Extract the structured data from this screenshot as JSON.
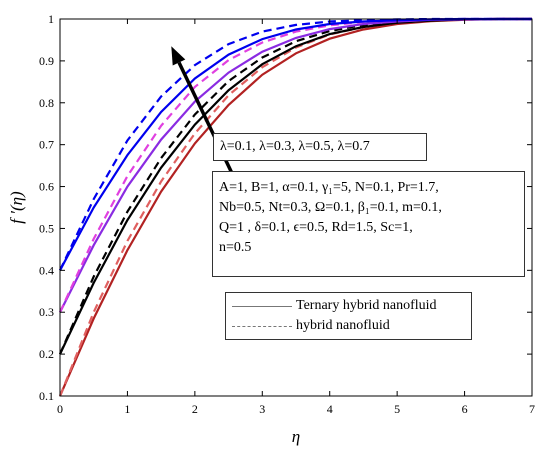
{
  "chart_data": {
    "type": "line",
    "title": "",
    "xlabel": "η",
    "ylabel": "f ′(η)",
    "xlim": [
      0,
      7
    ],
    "ylim": [
      0.1,
      1
    ],
    "xticks": [
      "0",
      "1",
      "2",
      "3",
      "4",
      "5",
      "6",
      "7"
    ],
    "yticks": [
      "0.1",
      "0.2",
      "0.3",
      "0.4",
      "0.5",
      "0.6",
      "0.7",
      "0.8",
      "0.9",
      "1"
    ],
    "grid": false,
    "series": [
      {
        "lambda": 0.1,
        "color": "#b22222",
        "style": "solid",
        "x": [
          0,
          0.5,
          1,
          1.5,
          2,
          2.5,
          3,
          3.5,
          4,
          4.5,
          5,
          5.5,
          6,
          6.5,
          7
        ],
        "y": [
          0.1,
          0.285,
          0.448,
          0.588,
          0.703,
          0.795,
          0.867,
          0.918,
          0.953,
          0.975,
          0.988,
          0.995,
          0.998,
          1.0,
          1.0
        ]
      },
      {
        "lambda": 0.1,
        "color": "#e06060",
        "style": "dashed",
        "x": [
          0,
          0.5,
          1,
          1.5,
          2,
          2.5,
          3,
          3.5,
          4,
          4.5,
          5,
          5.5,
          6,
          6.5,
          7
        ],
        "y": [
          0.1,
          0.3,
          0.47,
          0.612,
          0.727,
          0.818,
          0.885,
          0.932,
          0.963,
          0.981,
          0.991,
          0.996,
          0.999,
          1.0,
          1.0
        ]
      },
      {
        "lambda": 0.3,
        "color": "#000000",
        "style": "solid",
        "x": [
          0,
          0.5,
          1,
          1.5,
          2,
          2.5,
          3,
          3.5,
          4,
          4.5,
          5,
          5.5,
          6,
          6.5,
          7
        ],
        "y": [
          0.2,
          0.37,
          0.52,
          0.645,
          0.748,
          0.83,
          0.892,
          0.935,
          0.964,
          0.981,
          0.991,
          0.996,
          0.999,
          1.0,
          1.0
        ]
      },
      {
        "lambda": 0.3,
        "color": "#000000",
        "style": "dashed",
        "x": [
          0,
          0.5,
          1,
          1.5,
          2,
          2.5,
          3,
          3.5,
          4,
          4.5,
          5,
          5.5,
          6,
          6.5,
          7
        ],
        "y": [
          0.2,
          0.385,
          0.54,
          0.668,
          0.772,
          0.852,
          0.908,
          0.947,
          0.971,
          0.986,
          0.994,
          0.997,
          0.999,
          1.0,
          1.0
        ]
      },
      {
        "lambda": 0.5,
        "color": "#8a2be2",
        "style": "solid",
        "x": [
          0,
          0.5,
          1,
          1.5,
          2,
          2.5,
          3,
          3.5,
          4,
          4.5,
          5,
          5.5,
          6,
          6.5,
          7
        ],
        "y": [
          0.3,
          0.46,
          0.6,
          0.712,
          0.803,
          0.872,
          0.922,
          0.955,
          0.976,
          0.988,
          0.994,
          0.998,
          0.999,
          1.0,
          1.0
        ]
      },
      {
        "lambda": 0.5,
        "color": "#e040e0",
        "style": "dashed",
        "x": [
          0,
          0.5,
          1,
          1.5,
          2,
          2.5,
          3,
          3.5,
          4,
          4.5,
          5,
          5.5,
          6,
          6.5,
          7
        ],
        "y": [
          0.3,
          0.475,
          0.625,
          0.745,
          0.838,
          0.902,
          0.944,
          0.97,
          0.985,
          0.993,
          0.997,
          0.999,
          1.0,
          1.0,
          1.0
        ]
      },
      {
        "lambda": 0.7,
        "color": "#0000ee",
        "style": "solid",
        "x": [
          0,
          0.5,
          1,
          1.5,
          2,
          2.5,
          3,
          3.5,
          4,
          4.5,
          5,
          5.5,
          6,
          6.5,
          7
        ],
        "y": [
          0.4,
          0.55,
          0.675,
          0.778,
          0.858,
          0.915,
          0.952,
          0.975,
          0.988,
          0.994,
          0.997,
          0.999,
          1.0,
          1.0,
          1.0
        ]
      },
      {
        "lambda": 0.7,
        "color": "#0000ee",
        "style": "dashed",
        "x": [
          0,
          0.5,
          1,
          1.5,
          2,
          2.5,
          3,
          3.5,
          4,
          4.5,
          5,
          5.5,
          6,
          6.5,
          7
        ],
        "y": [
          0.4,
          0.57,
          0.71,
          0.815,
          0.89,
          0.94,
          0.97,
          0.986,
          0.994,
          0.997,
          0.999,
          1.0,
          1.0,
          1.0,
          1.0
        ]
      }
    ],
    "arrow": {
      "from": [
        2.6,
        0.615
      ],
      "to": [
        1.65,
        0.935
      ],
      "meaning": "increasing λ"
    },
    "annotations": {
      "lambda_text": "λ=0.1, λ=0.3, λ=0.5, λ=0.7",
      "params_lines": [
        "A=1, B=1, α=0.1, γ₁=5, N=0.1, Pr=1.7,",
        "Nb=0.5, Nt=0.3, Ω=0.1, β₁=0.1, m=0.1,",
        "Q=1 , δ=0.1, ϵ=0.5, Rd=1.5, Sc=1,",
        "n=0.5"
      ]
    },
    "legend": {
      "placement": "lower-right",
      "entries": [
        {
          "label": "Ternary hybrid nanofluid",
          "style": "solid",
          "color": "#777777"
        },
        {
          "label": "hybrid nanofluid",
          "style": "dashed",
          "color": "#777777"
        }
      ]
    }
  }
}
